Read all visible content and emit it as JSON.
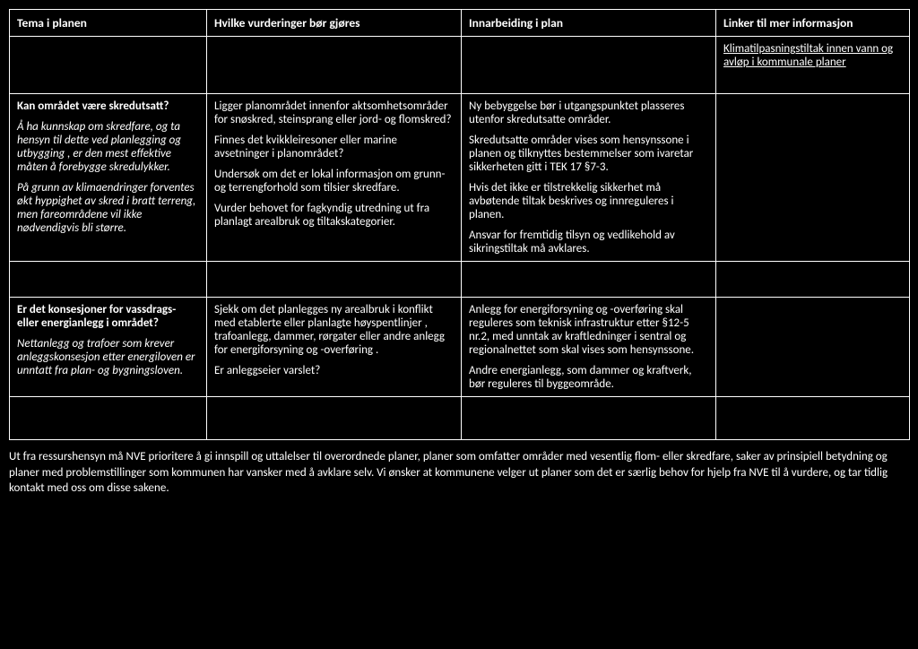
{
  "headers": {
    "c1": "Tema i planen",
    "c2": "Hvilke vurderinger bør gjøres",
    "c3": "Innarbeiding i plan",
    "c4": "Linker til mer informasjon"
  },
  "row1": {
    "c4": "Klimatilpasningstiltak innen vann og avløp i kommunale planer"
  },
  "row2": {
    "c1_bold": "Kan området være skredutsatt?",
    "c1_p1": "Å ha kunnskap om skredfare, og ta hensyn til dette ved planlegging og utbygging , er den mest effektive måten å forebygge skredulykker.",
    "c1_p2": "På grunn av klimaendringer forventes økt hyppighet av skred i bratt terreng, men fareområdene vil ikke nødvendigvis bli større.",
    "c2_p1": "Ligger planområdet innenfor aktsomhetsområder for snøskred, steinsprang eller jord- og flomskred?",
    "c2_p2": "Finnes det kvikkleiresoner eller marine avsetninger i planområdet?",
    "c2_p3": "Undersøk om det er lokal informasjon om grunn- og terrengforhold som tilsier skredfare.",
    "c2_p4": "Vurder behovet for fagkyndig utredning ut fra planlagt arealbruk og tiltakskategorier.",
    "c3_p1": "Ny bebyggelse bør i utgangspunktet plasseres utenfor skredutsatte områder.",
    "c3_p2": "Skredutsatte områder vises som hensynssone i planen og tilknyttes bestemmelser som ivaretar sikkerheten gitt i TEK 17 §7-3.",
    "c3_p3": "Hvis det ikke er tilstrekkelig sikkerhet må avbøtende tiltak beskrives og innreguleres i planen.",
    "c3_p4": "Ansvar for fremtidig tilsyn og vedlikehold av sikringstiltak må avklares."
  },
  "row3": {
    "c1_bold": "Er det konsesjoner for vassdrags- eller energianlegg i området?",
    "c1_p1": "Nettanlegg og trafoer som krever anleggskonsesjon etter energiloven er unntatt fra plan- og bygningsloven.",
    "c2_p1": "Sjekk om det planlegges ny arealbruk i konflikt med etablerte eller planlagte høyspentlinjer , trafoanlegg, dammer, rørgater eller andre anlegg for energiforsyning og -overføring .",
    "c2_p2": "Er anleggseier varslet?",
    "c3_p1": "Anlegg for energiforsyning og -overføring skal reguleres som teknisk infrastruktur etter §12-5 nr.2, med unntak av kraftledninger i sentral og regionalnettet som skal vises som hensynssone.",
    "c3_p2": "Andre energianlegg, som dammer og kraftverk, bør reguleres til byggeområde."
  },
  "footer": "Ut fra ressurshensyn må NVE prioritere å gi innspill og uttalelser til overordnede planer, planer som omfatter områder med vesentlig flom- eller skredfare, saker av prinsipiell betydning og planer med problemstillinger som kommunen har vansker med å avklare selv. Vi ønsker at kommunene velger ut planer som det er særlig behov for hjelp fra NVE til å vurdere, og tar tidlig kontakt med oss om disse sakene."
}
